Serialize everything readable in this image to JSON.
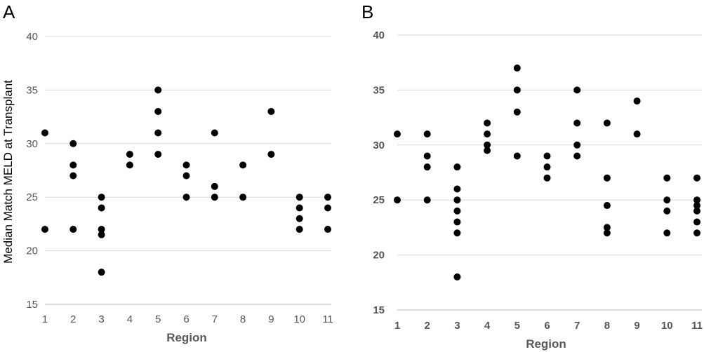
{
  "chart_data": [
    {
      "panel": "A",
      "type": "scatter",
      "xlabel": "Region",
      "ylabel": "Median Match MELD at  Transplant",
      "ylim": [
        15,
        40
      ],
      "yticks": [
        15,
        20,
        25,
        30,
        35,
        40
      ],
      "xticks": [
        1,
        2,
        3,
        4,
        5,
        6,
        7,
        8,
        9,
        10,
        11
      ],
      "grid": true,
      "tick_weight": "normal",
      "point_color": "#000000",
      "points": [
        {
          "x": 1,
          "y": 31
        },
        {
          "x": 1,
          "y": 22
        },
        {
          "x": 2,
          "y": 30
        },
        {
          "x": 2,
          "y": 28
        },
        {
          "x": 2,
          "y": 27
        },
        {
          "x": 2,
          "y": 22
        },
        {
          "x": 3,
          "y": 25
        },
        {
          "x": 3,
          "y": 24
        },
        {
          "x": 3,
          "y": 22
        },
        {
          "x": 3,
          "y": 21.5
        },
        {
          "x": 3,
          "y": 18
        },
        {
          "x": 4,
          "y": 29
        },
        {
          "x": 4,
          "y": 28
        },
        {
          "x": 5,
          "y": 35
        },
        {
          "x": 5,
          "y": 33
        },
        {
          "x": 5,
          "y": 31
        },
        {
          "x": 5,
          "y": 29
        },
        {
          "x": 6,
          "y": 28
        },
        {
          "x": 6,
          "y": 27
        },
        {
          "x": 6,
          "y": 25
        },
        {
          "x": 7,
          "y": 31
        },
        {
          "x": 7,
          "y": 26
        },
        {
          "x": 7,
          "y": 25
        },
        {
          "x": 8,
          "y": 28
        },
        {
          "x": 8,
          "y": 25
        },
        {
          "x": 9,
          "y": 33
        },
        {
          "x": 9,
          "y": 29
        },
        {
          "x": 10,
          "y": 25
        },
        {
          "x": 10,
          "y": 24
        },
        {
          "x": 10,
          "y": 23
        },
        {
          "x": 10,
          "y": 22
        },
        {
          "x": 11,
          "y": 25
        },
        {
          "x": 11,
          "y": 24
        },
        {
          "x": 11,
          "y": 22
        }
      ]
    },
    {
      "panel": "B",
      "type": "scatter",
      "xlabel": "Region",
      "ylabel": "",
      "ylim": [
        15,
        40
      ],
      "yticks": [
        15,
        20,
        25,
        30,
        35,
        40
      ],
      "xticks": [
        1,
        2,
        3,
        4,
        5,
        6,
        7,
        8,
        9,
        10,
        11
      ],
      "grid": true,
      "tick_weight": "bold",
      "point_color": "#000000",
      "points": [
        {
          "x": 1,
          "y": 31
        },
        {
          "x": 1,
          "y": 25
        },
        {
          "x": 2,
          "y": 31
        },
        {
          "x": 2,
          "y": 29
        },
        {
          "x": 2,
          "y": 28
        },
        {
          "x": 2,
          "y": 25
        },
        {
          "x": 3,
          "y": 28
        },
        {
          "x": 3,
          "y": 26
        },
        {
          "x": 3,
          "y": 25
        },
        {
          "x": 3,
          "y": 24
        },
        {
          "x": 3,
          "y": 23
        },
        {
          "x": 3,
          "y": 22
        },
        {
          "x": 3,
          "y": 18
        },
        {
          "x": 4,
          "y": 32
        },
        {
          "x": 4,
          "y": 31
        },
        {
          "x": 4,
          "y": 30
        },
        {
          "x": 4,
          "y": 29.5
        },
        {
          "x": 5,
          "y": 37
        },
        {
          "x": 5,
          "y": 35
        },
        {
          "x": 5,
          "y": 33
        },
        {
          "x": 5,
          "y": 29
        },
        {
          "x": 6,
          "y": 29
        },
        {
          "x": 6,
          "y": 28
        },
        {
          "x": 6,
          "y": 27
        },
        {
          "x": 7,
          "y": 35
        },
        {
          "x": 7,
          "y": 32
        },
        {
          "x": 7,
          "y": 30
        },
        {
          "x": 7,
          "y": 29
        },
        {
          "x": 8,
          "y": 32
        },
        {
          "x": 8,
          "y": 27
        },
        {
          "x": 8,
          "y": 24.5
        },
        {
          "x": 8,
          "y": 22.5
        },
        {
          "x": 8,
          "y": 22
        },
        {
          "x": 9,
          "y": 34
        },
        {
          "x": 9,
          "y": 31
        },
        {
          "x": 10,
          "y": 27
        },
        {
          "x": 10,
          "y": 25
        },
        {
          "x": 10,
          "y": 24
        },
        {
          "x": 10,
          "y": 22
        },
        {
          "x": 11,
          "y": 27
        },
        {
          "x": 11,
          "y": 25
        },
        {
          "x": 11,
          "y": 24.5
        },
        {
          "x": 11,
          "y": 24
        },
        {
          "x": 11,
          "y": 23
        },
        {
          "x": 11,
          "y": 22
        }
      ]
    }
  ]
}
